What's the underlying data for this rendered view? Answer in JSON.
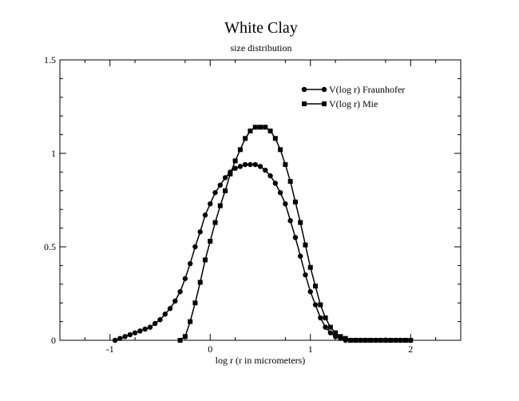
{
  "chart_data": {
    "type": "line",
    "title": "White Clay",
    "subtitle": "size distribution",
    "xlabel": "log r (r in micrometers)",
    "ylabel": "",
    "xlim": [
      -1.5,
      2.5
    ],
    "ylim": [
      0,
      1.5
    ],
    "xticks": [
      -1,
      0,
      1,
      2
    ],
    "xtick_labels": [
      "-1",
      "0",
      "1",
      "2"
    ],
    "yticks": [
      0,
      0.5,
      1,
      1.5
    ],
    "ytick_labels": [
      "0",
      "0.5",
      "1",
      "1.5"
    ],
    "grid": false,
    "legend_position": "top-right",
    "series": [
      {
        "name": "V(log r) Fraunhofer",
        "marker": "circle",
        "color": "#000000",
        "x": [
          -0.95,
          -0.9,
          -0.85,
          -0.8,
          -0.75,
          -0.7,
          -0.65,
          -0.6,
          -0.55,
          -0.5,
          -0.45,
          -0.4,
          -0.35,
          -0.3,
          -0.25,
          -0.2,
          -0.15,
          -0.1,
          -0.05,
          0.0,
          0.05,
          0.1,
          0.15,
          0.2,
          0.25,
          0.3,
          0.35,
          0.4,
          0.45,
          0.5,
          0.55,
          0.6,
          0.65,
          0.7,
          0.75,
          0.8,
          0.85,
          0.9,
          0.95,
          1.0,
          1.05,
          1.1,
          1.15,
          1.2,
          1.25,
          1.3,
          1.35,
          1.4,
          1.45,
          1.5,
          1.55,
          1.6,
          1.65,
          1.7,
          1.75,
          1.8,
          1.85,
          1.9,
          1.95,
          2.0
        ],
        "y": [
          0.0,
          0.01,
          0.02,
          0.03,
          0.04,
          0.05,
          0.06,
          0.07,
          0.09,
          0.11,
          0.14,
          0.17,
          0.21,
          0.26,
          0.33,
          0.41,
          0.5,
          0.58,
          0.67,
          0.73,
          0.79,
          0.83,
          0.87,
          0.9,
          0.92,
          0.93,
          0.94,
          0.94,
          0.94,
          0.93,
          0.91,
          0.88,
          0.84,
          0.79,
          0.73,
          0.64,
          0.55,
          0.45,
          0.35,
          0.26,
          0.19,
          0.12,
          0.07,
          0.04,
          0.02,
          0.01,
          0.0,
          0.0,
          0.0,
          0.0,
          0.0,
          0.0,
          0.0,
          0.0,
          0.0,
          0.0,
          0.0,
          0.0,
          0.0,
          0.0
        ]
      },
      {
        "name": "V(log r) Mie",
        "marker": "square",
        "color": "#000000",
        "x": [
          -0.3,
          -0.25,
          -0.2,
          -0.15,
          -0.1,
          -0.05,
          0.0,
          0.05,
          0.1,
          0.15,
          0.2,
          0.25,
          0.3,
          0.35,
          0.4,
          0.45,
          0.5,
          0.55,
          0.6,
          0.65,
          0.7,
          0.75,
          0.8,
          0.85,
          0.9,
          0.95,
          1.0,
          1.05,
          1.1,
          1.15,
          1.2,
          1.25,
          1.3,
          1.35,
          1.4,
          1.45,
          1.5,
          1.55,
          1.6,
          1.65,
          1.7,
          1.75,
          1.8,
          1.85,
          1.9,
          1.95,
          2.0
        ],
        "y": [
          0.0,
          0.02,
          0.1,
          0.2,
          0.31,
          0.43,
          0.53,
          0.63,
          0.72,
          0.8,
          0.89,
          0.96,
          1.02,
          1.08,
          1.12,
          1.14,
          1.14,
          1.14,
          1.12,
          1.08,
          1.02,
          0.94,
          0.85,
          0.74,
          0.63,
          0.51,
          0.39,
          0.29,
          0.19,
          0.12,
          0.07,
          0.04,
          0.02,
          0.01,
          0.0,
          0.0,
          0.0,
          0.0,
          0.0,
          0.0,
          0.0,
          0.0,
          0.0,
          0.0,
          0.0,
          0.0,
          0.0
        ]
      }
    ]
  }
}
